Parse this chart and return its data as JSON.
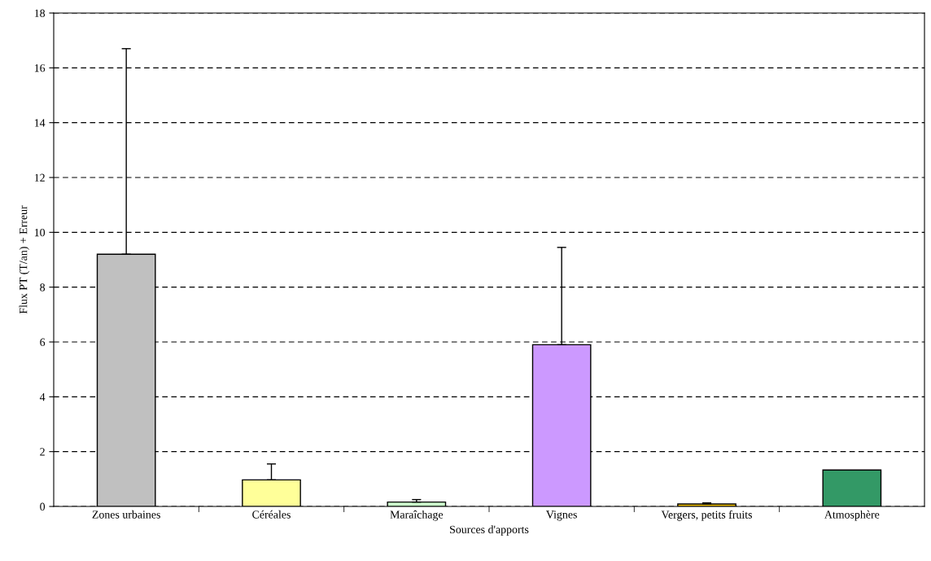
{
  "chart_data": {
    "type": "bar",
    "xlabel": "Sources d'apports",
    "ylabel": "Flux PT (T/an) + Erreur",
    "categories": [
      "Zones urbaines",
      "Céréales",
      "Maraîchage",
      "Vignes",
      "Vergers, petits fruits",
      "Atmosphère"
    ],
    "values": [
      9.2,
      0.97,
      0.16,
      5.9,
      0.09,
      1.33
    ],
    "errors": [
      [
        9.2,
        16.7
      ],
      [
        0.97,
        1.55
      ],
      [
        0.16,
        0.25
      ],
      [
        5.9,
        9.45
      ],
      [
        0.09,
        0.13
      ],
      null
    ],
    "colors": [
      "#c0c0c0",
      "#ffff99",
      "#ccffcc",
      "#cc99ff",
      "#ffcc00",
      "#339966"
    ],
    "ylim": [
      0,
      18
    ],
    "yticks": [
      0,
      2,
      4,
      6,
      8,
      10,
      12,
      14,
      16,
      18
    ],
    "grid": "y"
  }
}
